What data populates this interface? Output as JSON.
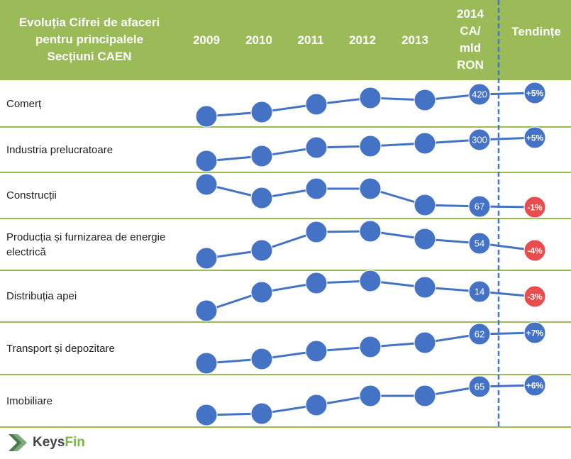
{
  "header": {
    "title_lines": [
      "Evoluția Cifrei de afaceri",
      "pentru principalele",
      "Secțiuni CAEN"
    ],
    "years": [
      "2009",
      "2010",
      "2011",
      "2012",
      "2013"
    ],
    "col2014_lines": [
      "2014",
      "CA/",
      "mld",
      "RON"
    ],
    "trend_label": "Tendințe"
  },
  "chart_data": {
    "type": "line",
    "title": "Evoluția Cifrei de afaceri pentru principalele Secțiuni CAEN",
    "categories": [
      "2009",
      "2010",
      "2011",
      "2012",
      "2013",
      "2014"
    ],
    "rows": [
      {
        "name": "Comerț",
        "value_2014": "420",
        "trend": "+5%",
        "trend_dir": "up"
      },
      {
        "name": "Industria prelucratoare",
        "value_2014": "300",
        "trend": "+5%",
        "trend_dir": "up"
      },
      {
        "name": "Construcții",
        "value_2014": "67",
        "trend": "-1%",
        "trend_dir": "down"
      },
      {
        "name": "Producția și furnizarea de energie electrică",
        "value_2014": "54",
        "trend": "-4%",
        "trend_dir": "down"
      },
      {
        "name": "Distribuția apei",
        "value_2014": "14",
        "trend": "-3%",
        "trend_dir": "down"
      },
      {
        "name": "Transport și depozitare",
        "value_2014": "62",
        "trend": "+7%",
        "trend_dir": "up"
      },
      {
        "name": "Imobiliare",
        "value_2014": "65",
        "trend": "+6%",
        "trend_dir": "up"
      }
    ],
    "colors": {
      "point": "#4472C4",
      "negative": "#E84C4C",
      "header": "#9BBB59"
    }
  },
  "logo": {
    "part1": "Keys",
    "part2": "Fin"
  }
}
